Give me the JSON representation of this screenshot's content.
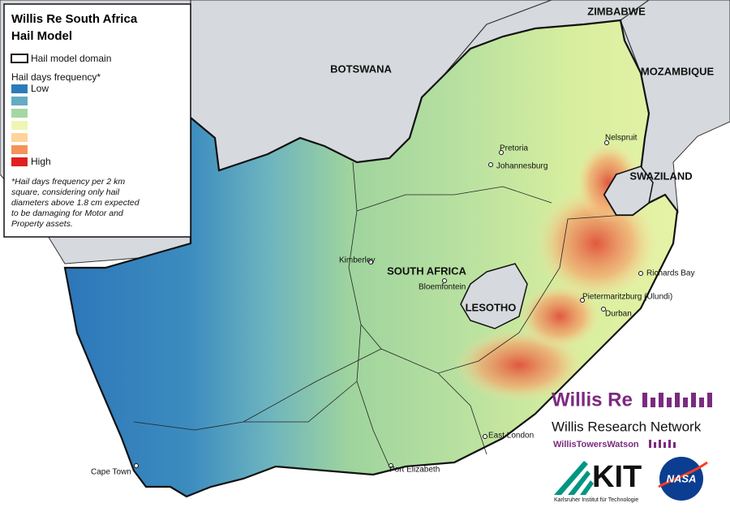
{
  "legend": {
    "title": [
      "Willis Re South Africa",
      "Hail Model"
    ],
    "domain_label": "Hail model domain",
    "scale_title": "Hail days frequency*",
    "scale_colors": [
      "#2b7bba",
      "#64abc3",
      "#a5d7a2",
      "#eef6b4",
      "#fdd49a",
      "#f4925a",
      "#e01f1f"
    ],
    "scale_low": "Low",
    "scale_high": "High",
    "footnote": [
      "*Hail days frequency per 2 km",
      "square, considering only hail",
      "diameters above 1.8 cm expected",
      "to be damaging for Motor and",
      "Property assets."
    ]
  },
  "countries": [
    "ZIMBABWE",
    "BOTSWANA",
    "MOZAMBIQUE",
    "SWAZILAND",
    "SOUTH AFRICA",
    "LESOTHO"
  ],
  "cities": [
    "Pretoria",
    "Johannesburg",
    "Nelspruit",
    "Kimberley",
    "Bloemfontein",
    "Richards Bay",
    "Pietermaritzburg (Ulundi)",
    "Durban",
    "East London",
    "Cape Town",
    "Port Elizabeth"
  ],
  "logos": {
    "willis_re": "Willis Re",
    "wrn": "Willis Research Network",
    "wtw": "WillisTowersWatson",
    "kit": "KIT",
    "kit_sub": "Karlsruher Institut für Technologie",
    "nasa": "NASA"
  }
}
